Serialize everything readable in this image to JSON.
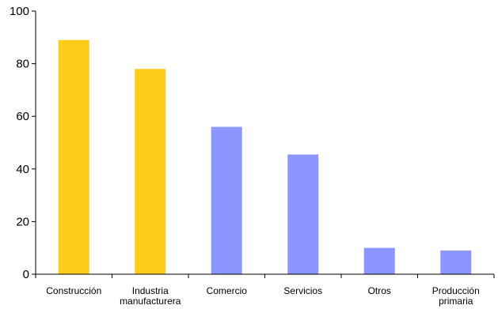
{
  "chart_data": {
    "type": "bar",
    "categories": [
      [
        "Construcción"
      ],
      [
        "Industria",
        "manufacturera"
      ],
      [
        "Comercio"
      ],
      [
        "Servicios"
      ],
      [
        "Otros"
      ],
      [
        "Producción",
        "primaria"
      ]
    ],
    "values": [
      89,
      78,
      56,
      45.5,
      10,
      9
    ],
    "bar_colors": [
      "#FFCC1A",
      "#FFCC1A",
      "#8C96FF",
      "#8C96FF",
      "#8C96FF",
      "#8C96FF"
    ],
    "ylim": [
      0,
      100
    ],
    "yticks": [
      0,
      20,
      40,
      60,
      80,
      100
    ],
    "grid": false,
    "legend": "none"
  }
}
